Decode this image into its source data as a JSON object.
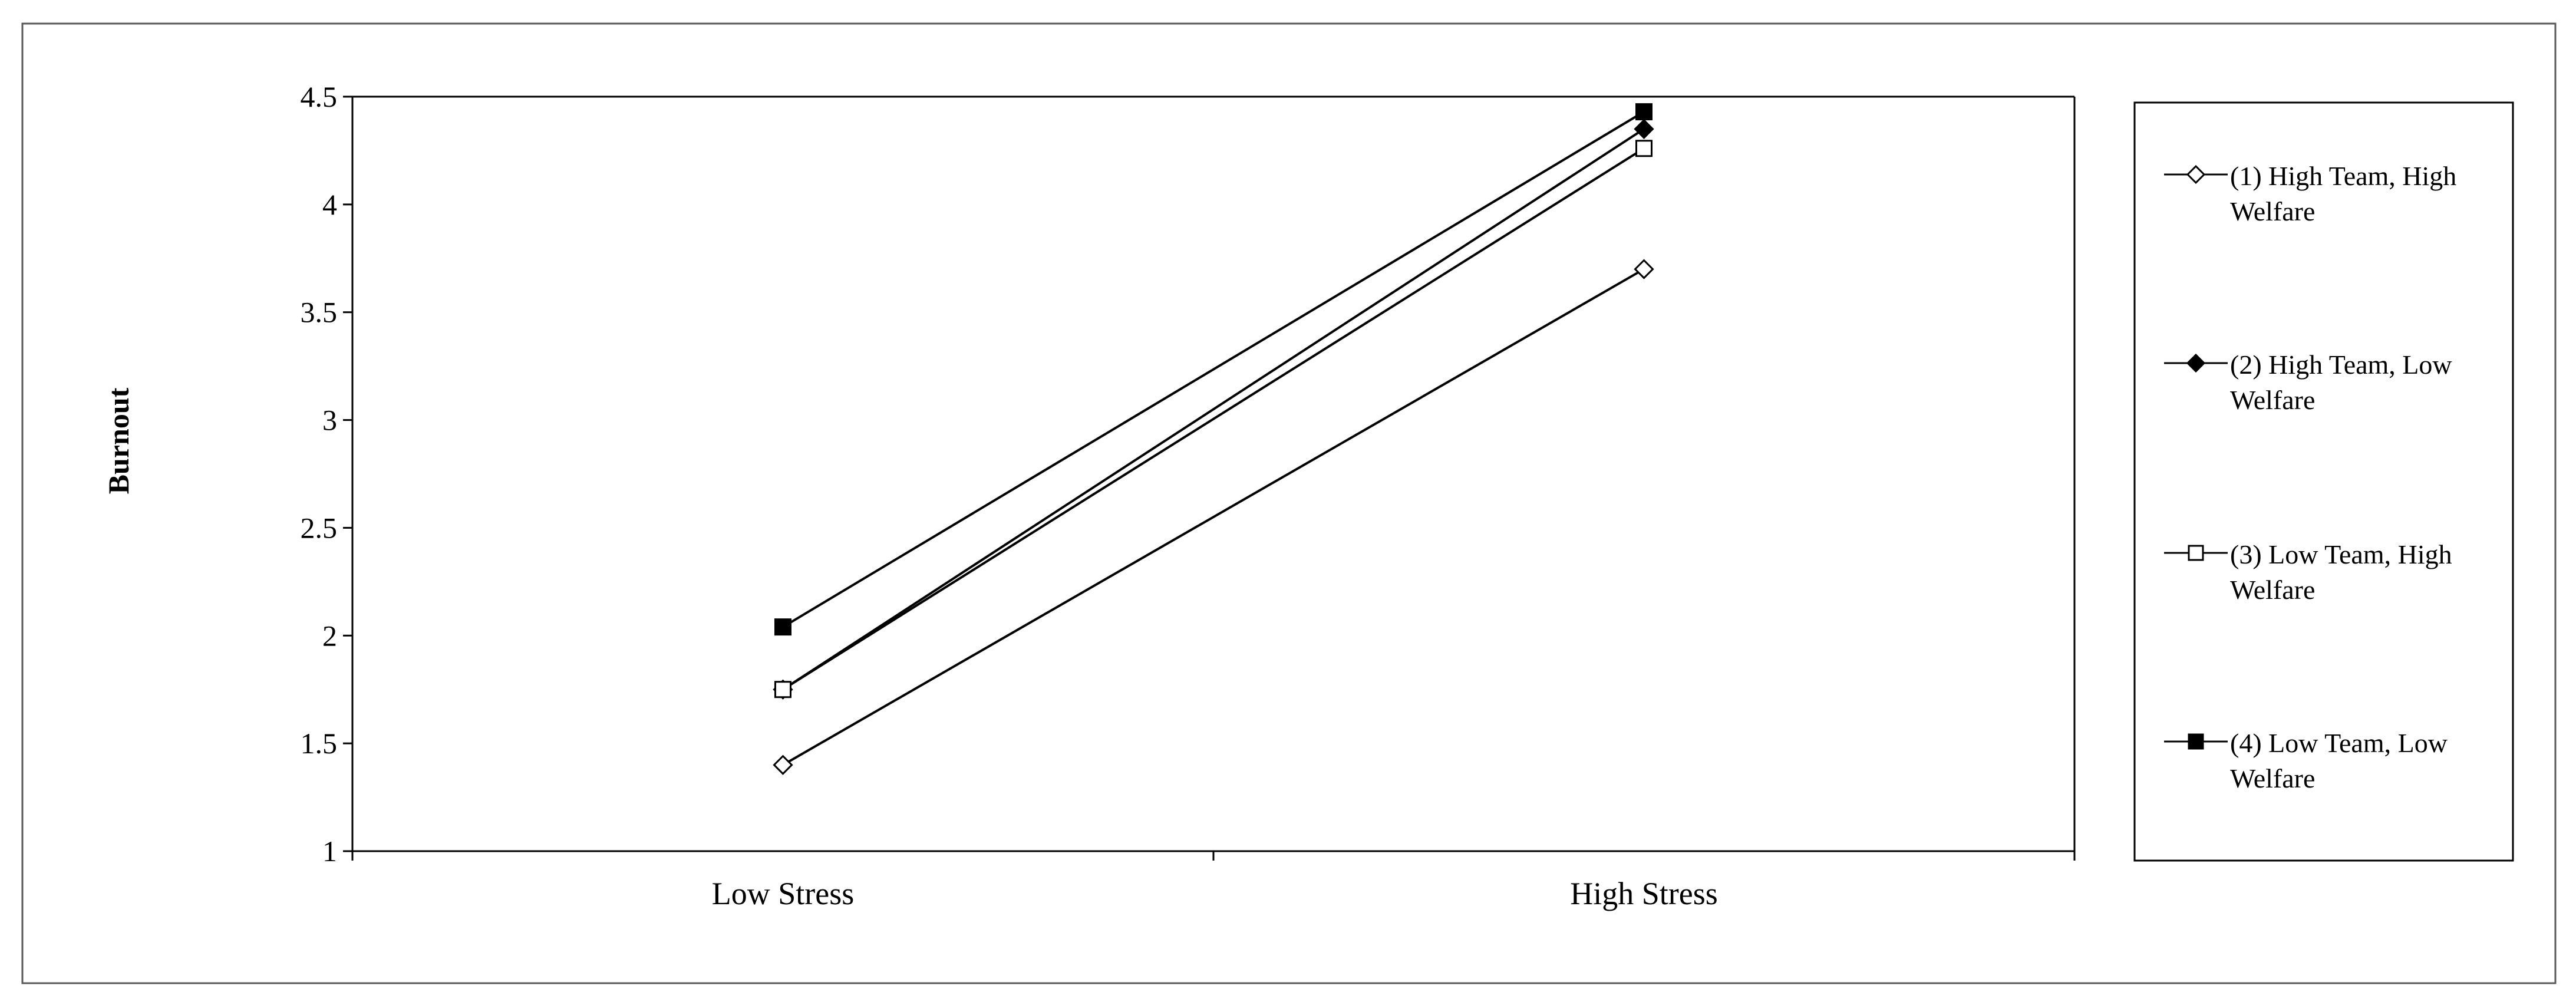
{
  "chart_data": {
    "type": "line",
    "title": "",
    "xlabel": "",
    "ylabel": "Burnout",
    "categories": [
      "Low Stress",
      "High Stress"
    ],
    "ylim": [
      1,
      4.5
    ],
    "yticks": [
      1,
      1.5,
      2,
      2.5,
      3,
      3.5,
      4,
      4.5
    ],
    "ytick_labels": [
      "1",
      "1.5",
      "2",
      "2.5",
      "3",
      "3.5",
      "4",
      "4.5"
    ],
    "grid": false,
    "legend_position": "right",
    "series": [
      {
        "name": "(1) High Team, High Welfare",
        "legend_lines": [
          "(1) High Team, High",
          "Welfare"
        ],
        "marker": "diamond-open",
        "values": [
          1.4,
          3.7
        ]
      },
      {
        "name": "(2) High Team, Low Welfare",
        "legend_lines": [
          "(2) High Team, Low",
          "Welfare"
        ],
        "marker": "diamond-filled",
        "values": [
          1.75,
          4.35
        ]
      },
      {
        "name": "(3) Low Team, High Welfare",
        "legend_lines": [
          "(3) Low Team, High",
          "Welfare"
        ],
        "marker": "square-open",
        "values": [
          1.75,
          4.26
        ]
      },
      {
        "name": "(4) Low Team, Low Welfare",
        "legend_lines": [
          "(4) Low Team, Low",
          "Welfare"
        ],
        "marker": "square-filled",
        "values": [
          2.04,
          4.43
        ]
      }
    ],
    "colors": {
      "line": "#000000",
      "frame": "#595959",
      "background": "#ffffff"
    }
  }
}
